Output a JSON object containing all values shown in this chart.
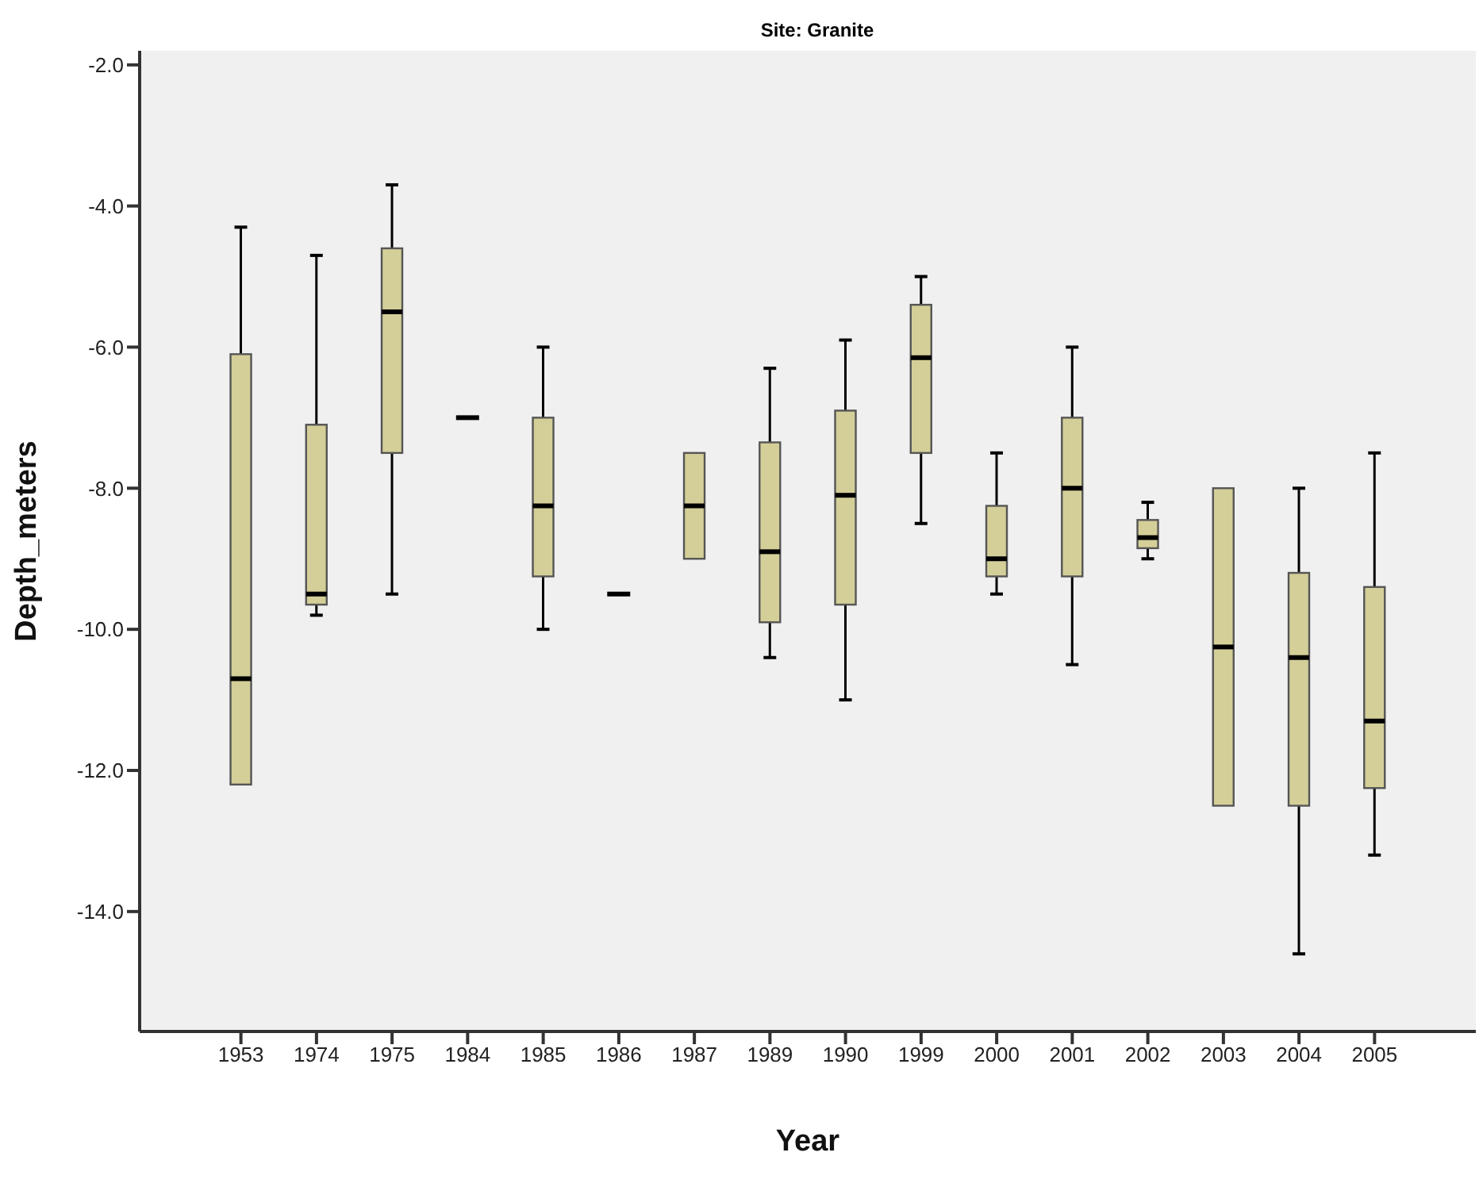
{
  "chart_data": {
    "type": "box",
    "title": "Site: Granite",
    "xlabel": "Year",
    "ylabel": "Depth_meters",
    "color": "#d4cf98",
    "categories": [
      "1953",
      "1974",
      "1975",
      "1984",
      "1985",
      "1986",
      "1987",
      "1989",
      "1990",
      "1999",
      "2000",
      "2001",
      "2002",
      "2003",
      "2004",
      "2005"
    ],
    "boxes": [
      {
        "low": -12.2,
        "q1": -12.2,
        "median": -10.7,
        "q3": -6.1,
        "high": -4.3
      },
      {
        "low": -9.8,
        "q1": -9.65,
        "median": -9.5,
        "q3": -7.1,
        "high": -4.7
      },
      {
        "low": -9.5,
        "q1": -7.5,
        "median": -5.5,
        "q3": -4.6,
        "high": -3.7
      },
      {
        "low": -7.0,
        "q1": -7.0,
        "median": -7.0,
        "q3": -7.0,
        "high": -7.0
      },
      {
        "low": -10.0,
        "q1": -9.25,
        "median": -8.25,
        "q3": -7.0,
        "high": -6.0
      },
      {
        "low": -9.5,
        "q1": -9.5,
        "median": -9.5,
        "q3": -9.5,
        "high": -9.5
      },
      {
        "low": -9.0,
        "q1": -9.0,
        "median": -8.25,
        "q3": -7.5,
        "high": -7.5
      },
      {
        "low": -10.4,
        "q1": -9.9,
        "median": -8.9,
        "q3": -7.35,
        "high": -6.3
      },
      {
        "low": -11.0,
        "q1": -9.65,
        "median": -8.1,
        "q3": -6.9,
        "high": -5.9
      },
      {
        "low": -8.5,
        "q1": -7.5,
        "median": -6.15,
        "q3": -5.4,
        "high": -5.0
      },
      {
        "low": -9.5,
        "q1": -9.25,
        "median": -9.0,
        "q3": -8.25,
        "high": -7.5
      },
      {
        "low": -10.5,
        "q1": -9.25,
        "median": -8.0,
        "q3": -7.0,
        "high": -6.0
      },
      {
        "low": -9.0,
        "q1": -8.85,
        "median": -8.7,
        "q3": -8.45,
        "high": -8.2
      },
      {
        "low": -12.5,
        "q1": -12.5,
        "median": -10.25,
        "q3": -8.0,
        "high": -8.0
      },
      {
        "low": -14.6,
        "q1": -12.5,
        "median": -10.4,
        "q3": -9.2,
        "high": -8.0
      },
      {
        "low": -13.2,
        "q1": -12.25,
        "median": -11.3,
        "q3": -9.4,
        "high": -7.5
      }
    ],
    "ylim": [
      -15.7,
      -1.8
    ],
    "yticks": [
      {
        "value": -2,
        "label": "-2.0"
      },
      {
        "value": -4,
        "label": "-4.0"
      },
      {
        "value": -6,
        "label": "-6.0"
      },
      {
        "value": -8,
        "label": "-8.0"
      },
      {
        "value": -10,
        "label": "-10.0"
      },
      {
        "value": -12,
        "label": "-12.0"
      },
      {
        "value": -14,
        "label": "-14.0"
      }
    ]
  }
}
